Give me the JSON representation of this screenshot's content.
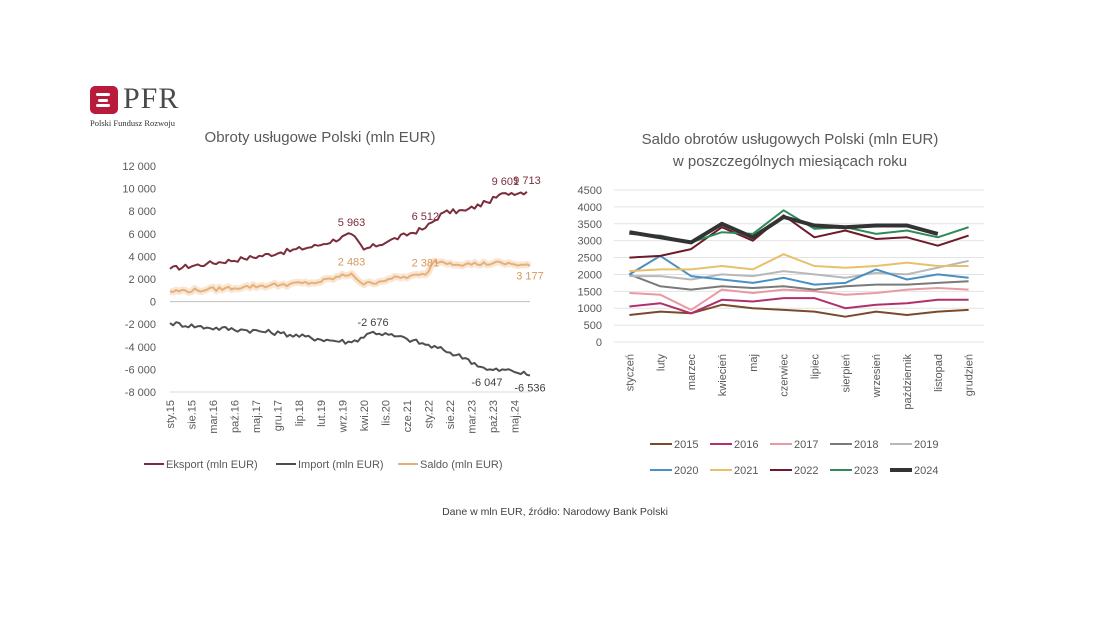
{
  "logo": {
    "name": "PFR",
    "subtitle": "Polski Fundusz Rozwoju",
    "color": "#b81c3a"
  },
  "source_note": "Dane w mln EUR, źródło: Narodowy Bank Polski",
  "chart_data": [
    {
      "type": "line",
      "title": "Obroty usługowe Polski (mln EUR)",
      "ylim": [
        -8000,
        12000
      ],
      "yticks": [
        12000,
        10000,
        8000,
        6000,
        4000,
        2000,
        0,
        -2000,
        -4000,
        -6000,
        -8000
      ],
      "ytick_labels": [
        "12 000",
        "10 000",
        "8 000",
        "6 000",
        "4 000",
        "2 000",
        "0",
        "-2 000",
        "-4 000",
        "-6 000",
        "-8 000"
      ],
      "x_start": "2015-01",
      "x_end": "2024-10",
      "xtick_labels": [
        "sty.15",
        "sie.15",
        "mar.16",
        "paź.16",
        "maj.17",
        "gru.17",
        "lip.18",
        "lut.19",
        "wrz.19",
        "kwi.20",
        "lis.20",
        "cze.21",
        "sty.22",
        "sie.22",
        "mar.23",
        "paź.23",
        "maj.24"
      ],
      "grid": false,
      "legend_position": "bottom",
      "series": [
        {
          "name": "Eksport (mln EUR)",
          "color": "#7b2d3c",
          "anchors": [
            [
              "2015-01",
              2900
            ],
            [
              "2016-01",
              3350
            ],
            [
              "2017-01",
              3800
            ],
            [
              "2018-01",
              4350
            ],
            [
              "2019-01",
              4950
            ],
            [
              "2019-12",
              5963
            ],
            [
              "2020-04",
              4600
            ],
            [
              "2020-12",
              5350
            ],
            [
              "2021-12",
              6512
            ],
            [
              "2022-06",
              7900
            ],
            [
              "2023-01",
              8050
            ],
            [
              "2023-08",
              8800
            ],
            [
              "2024-02",
              9601
            ],
            [
              "2024-09",
              9713
            ]
          ]
        },
        {
          "name": "Import (mln EUR)",
          "color": "#4f4f4f",
          "anchors": [
            [
              "2015-01",
              -1900
            ],
            [
              "2016-01",
              -2300
            ],
            [
              "2017-01",
              -2500
            ],
            [
              "2018-01",
              -2800
            ],
            [
              "2019-01",
              -3300
            ],
            [
              "2019-12",
              -3600
            ],
            [
              "2020-07",
              -2676
            ],
            [
              "2021-06",
              -3300
            ],
            [
              "2022-06",
              -4300
            ],
            [
              "2023-01",
              -5000
            ],
            [
              "2023-08",
              -6047
            ],
            [
              "2024-04",
              -6100
            ],
            [
              "2024-10",
              -6536
            ]
          ]
        },
        {
          "name": "Saldo (mln EUR)",
          "color": "#e6b07c",
          "anchors": [
            [
              "2015-01",
              900
            ],
            [
              "2016-01",
              1050
            ],
            [
              "2017-01",
              1300
            ],
            [
              "2018-01",
              1500
            ],
            [
              "2019-01",
              1700
            ],
            [
              "2019-12",
              2483
            ],
            [
              "2020-04",
              1500
            ],
            [
              "2020-12",
              2000
            ],
            [
              "2021-12",
              2381
            ],
            [
              "2022-03",
              3600
            ],
            [
              "2023-01",
              3300
            ],
            [
              "2024-01",
              3400
            ],
            [
              "2024-10",
              3177
            ]
          ]
        }
      ],
      "annotations": [
        {
          "series": 0,
          "x": "2019-12",
          "y": 5963,
          "text": "5 963"
        },
        {
          "series": 0,
          "x": "2021-12",
          "y": 6512,
          "text": "6 512"
        },
        {
          "series": 0,
          "x": "2024-02",
          "y": 9601,
          "text": "9 601"
        },
        {
          "series": 0,
          "x": "2024-09",
          "y": 9713,
          "text": "9 713"
        },
        {
          "series": 2,
          "x": "2019-12",
          "y": 2483,
          "text": "2 483"
        },
        {
          "series": 2,
          "x": "2021-12",
          "y": 2381,
          "text": "2 381"
        },
        {
          "series": 2,
          "x": "2024-10",
          "y": 3177,
          "text": "3 177"
        },
        {
          "series": 1,
          "x": "2020-07",
          "y": -2676,
          "text": "-2 676"
        },
        {
          "series": 1,
          "x": "2023-08",
          "y": -6047,
          "text": "-6 047"
        },
        {
          "series": 1,
          "x": "2024-10",
          "y": -6536,
          "text": "-6 536"
        }
      ]
    },
    {
      "type": "line",
      "title": "Saldo obrotów usługowych Polski (mln EUR) w poszczególnych miesiącach roku",
      "ylim": [
        0,
        4500
      ],
      "yticks": [
        4500,
        4000,
        3500,
        3000,
        2500,
        2000,
        1500,
        1000,
        500,
        0
      ],
      "categories": [
        "styczeń",
        "luty",
        "marzec",
        "kwiecień",
        "maj",
        "czerwiec",
        "lipiec",
        "sierpień",
        "wrzesień",
        "październik",
        "listopad",
        "grudzień"
      ],
      "grid": true,
      "legend_position": "bottom",
      "series": [
        {
          "name": "2015",
          "color": "#7a4a2a",
          "values": [
            800,
            900,
            850,
            1100,
            1000,
            950,
            900,
            750,
            900,
            800,
            900,
            950
          ]
        },
        {
          "name": "2016",
          "color": "#b0306a",
          "values": [
            1050,
            1150,
            850,
            1250,
            1200,
            1300,
            1300,
            1000,
            1100,
            1150,
            1250,
            1250
          ]
        },
        {
          "name": "2017",
          "color": "#e89aa2",
          "values": [
            1450,
            1400,
            950,
            1550,
            1450,
            1550,
            1500,
            1400,
            1450,
            1550,
            1600,
            1550
          ]
        },
        {
          "name": "2018",
          "color": "#7a7a7a",
          "values": [
            2000,
            1650,
            1550,
            1650,
            1600,
            1650,
            1550,
            1650,
            1700,
            1700,
            1750,
            1800
          ]
        },
        {
          "name": "2019",
          "color": "#b8b8b8",
          "values": [
            1950,
            1950,
            1850,
            2000,
            1950,
            2100,
            2000,
            1900,
            2050,
            2000,
            2200,
            2400
          ]
        },
        {
          "name": "2020",
          "color": "#4a90c0",
          "values": [
            2000,
            2550,
            1950,
            1850,
            1750,
            1900,
            1700,
            1750,
            2150,
            1850,
            2000,
            1900
          ]
        },
        {
          "name": "2021",
          "color": "#e8c06a",
          "values": [
            2100,
            2150,
            2150,
            2250,
            2150,
            2600,
            2250,
            2200,
            2250,
            2350,
            2250,
            2250
          ]
        },
        {
          "name": "2022",
          "color": "#6e1a2a",
          "values": [
            2500,
            2550,
            2750,
            3400,
            3000,
            3750,
            3100,
            3300,
            3050,
            3100,
            2850,
            3150
          ]
        },
        {
          "name": "2023",
          "color": "#2e8b57",
          "values": [
            3200,
            3150,
            2950,
            3250,
            3200,
            3900,
            3350,
            3400,
            3200,
            3300,
            3100,
            3400
          ]
        },
        {
          "name": "2024",
          "color": "#333333",
          "values": [
            3250,
            3100,
            2950,
            3500,
            3100,
            3700,
            3450,
            3400,
            3450,
            3450,
            3200,
            null
          ]
        }
      ]
    }
  ]
}
